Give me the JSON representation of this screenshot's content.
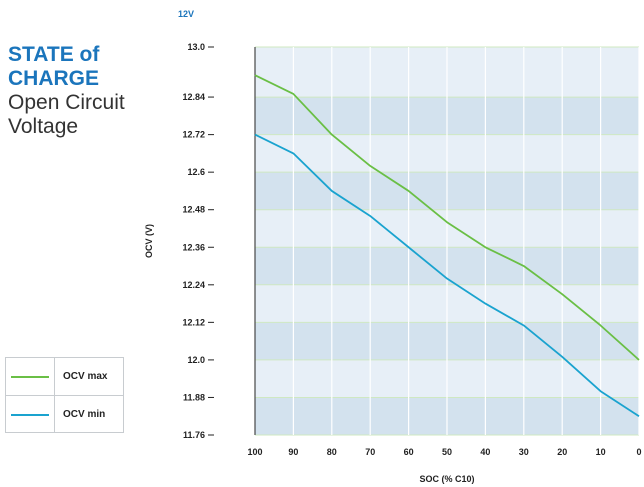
{
  "heading": {
    "voltage_tag": "12V",
    "title_line1": "STATE of",
    "title_line2": "CHARGE",
    "subtitle_line1": "Open Circuit",
    "subtitle_line2": "Voltage"
  },
  "colors": {
    "accent": "#1b75bc",
    "series_max": "#6abf45",
    "series_min": "#1aa3cf",
    "band_dark": "#d3e2ee",
    "band_light": "#e7eff7",
    "grid_vertical": "#ffffff",
    "grid_horizontal": "#cfe8c2"
  },
  "legend": {
    "items": [
      {
        "label": "OCV max",
        "color": "#6abf45"
      },
      {
        "label": "OCV min",
        "color": "#1aa3cf"
      }
    ]
  },
  "chart_data": {
    "type": "line",
    "title": "",
    "xlabel": "SOC (% C10)",
    "ylabel": "OCV (V)",
    "x": [
      100,
      90,
      80,
      70,
      60,
      50,
      40,
      30,
      20,
      10,
      0
    ],
    "xlim": [
      100,
      0
    ],
    "ylim": [
      11.76,
      13.0
    ],
    "x_ticks": [
      "100",
      "90",
      "80",
      "70",
      "60",
      "50",
      "40",
      "30",
      "20",
      "10",
      "0"
    ],
    "y_ticks": [
      "13.0",
      "12.84",
      "12.72",
      "12.6",
      "12.48",
      "12.36",
      "12.24",
      "12.12",
      "12.0",
      "11.88",
      "11.76"
    ],
    "grid": true,
    "legend_position": "bottom-left",
    "series": [
      {
        "name": "OCV max",
        "values": [
          12.91,
          12.85,
          12.72,
          12.62,
          12.54,
          12.44,
          12.36,
          12.3,
          12.21,
          12.11,
          12.0
        ]
      },
      {
        "name": "OCV min",
        "values": [
          12.72,
          12.66,
          12.54,
          12.46,
          12.36,
          12.26,
          12.18,
          12.11,
          12.01,
          11.9,
          11.82
        ]
      }
    ]
  }
}
